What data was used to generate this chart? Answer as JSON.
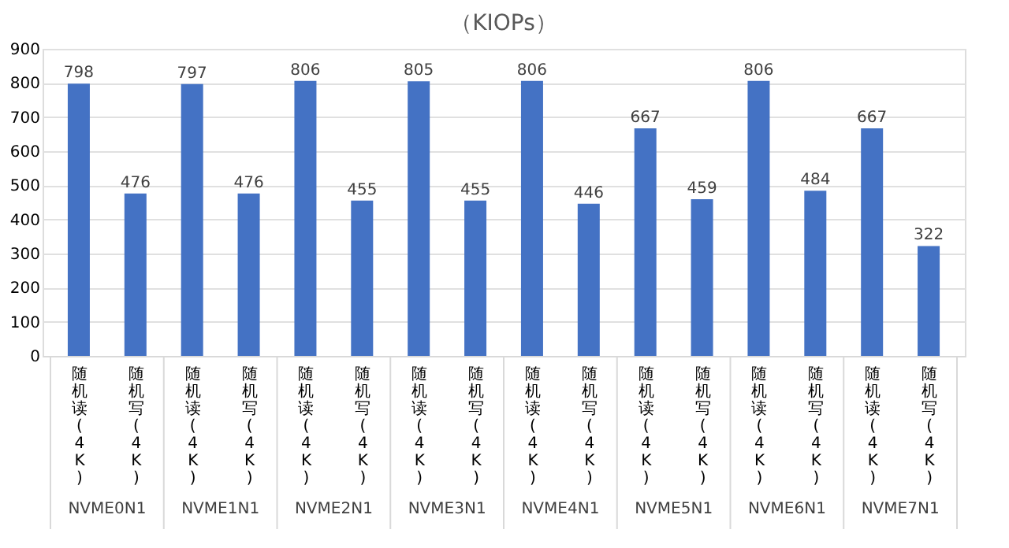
{
  "chart_data": {
    "type": "bar",
    "title": "（KIOPs）",
    "categories": [
      "随机读(4K)",
      "随机写(4K)",
      "随机读(4K)",
      "随机写(4K)",
      "随机读(4K)",
      "随机写(4K)",
      "随机读(4K)",
      "随机写(4K)",
      "随机读(4K)",
      "随机写(4K)",
      "随机读(4K)",
      "随机写(4K)",
      "随机读(4K)",
      "随机写(4K)",
      "随机读(4K)",
      "随机写(4K)"
    ],
    "values": [
      798,
      476,
      797,
      476,
      806,
      455,
      805,
      455,
      806,
      446,
      667,
      459,
      806,
      484,
      667,
      322
    ],
    "color": "#4472c4",
    "ylim": [
      0,
      900
    ],
    "yticks": [
      0,
      100,
      200,
      300,
      400,
      500,
      600,
      700,
      800,
      900
    ],
    "grid": "y",
    "data_labels": true,
    "annotations": [
      "NVME0N1",
      "NVME1N1",
      "NVME2N1",
      "NVME3N1",
      "NVME4N1",
      "NVME5N1",
      "NVME6N1",
      "NVME7N1"
    ]
  }
}
